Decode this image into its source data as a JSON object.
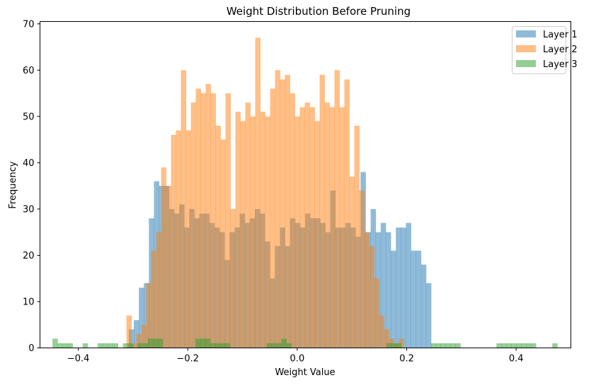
{
  "chart_data": {
    "type": "histogram",
    "title": "Weight Distribution Before Pruning",
    "xlabel": "Weight Value",
    "ylabel": "Frequency",
    "xlim": [
      -0.47,
      0.5
    ],
    "ylim": [
      0,
      70.5
    ],
    "x_ticks": [
      -0.4,
      -0.2,
      0.0,
      0.2,
      0.4
    ],
    "x_tick_labels": [
      "−0.4",
      "−0.2",
      "0.0",
      "0.2",
      "0.4"
    ],
    "y_ticks": [
      0,
      10,
      20,
      30,
      40,
      50,
      60,
      70
    ],
    "y_tick_labels": [
      "0",
      "10",
      "20",
      "30",
      "40",
      "50",
      "60",
      "70"
    ],
    "grid": false,
    "legend_position": "top-right",
    "alpha": 0.5,
    "series": [
      {
        "name": "Layer 1",
        "color": "#1f77b4",
        "bin_start": -0.3078,
        "bin_width": 0.009207,
        "values": [
          4,
          6,
          13,
          14,
          28,
          36,
          35,
          35,
          30,
          29,
          31,
          26,
          30,
          28,
          29,
          29,
          27,
          26,
          25,
          19,
          25,
          26,
          29,
          27,
          28,
          30,
          29,
          23,
          15,
          22,
          26,
          22,
          28,
          27,
          26,
          29,
          28,
          28,
          27,
          25,
          34,
          26,
          26,
          27,
          26,
          24,
          38,
          25,
          30,
          25,
          27,
          25,
          21,
          26,
          26,
          27,
          21,
          21,
          18,
          14
        ]
      },
      {
        "name": "Layer 2",
        "color": "#ff7f0e",
        "bin_start": -0.312,
        "bin_width": 0.00905,
        "values": [
          7,
          1,
          3,
          5,
          14,
          21,
          25,
          39,
          35,
          46,
          47,
          60,
          47,
          53,
          56,
          55,
          57,
          55,
          48,
          45,
          55,
          30,
          51,
          49,
          53,
          50,
          67,
          51,
          50,
          56,
          60,
          58,
          59,
          55,
          50,
          52,
          53,
          52,
          49,
          59,
          53,
          52,
          60,
          52,
          58,
          37,
          48,
          34,
          25,
          22,
          15,
          7,
          4,
          2,
          1,
          2
        ]
      },
      {
        "name": "Layer 3",
        "color": "#2ca02c",
        "bin_start": -0.4472,
        "bin_width": 0.009207,
        "values": [
          2,
          1,
          1,
          1,
          0,
          0,
          1,
          0,
          0,
          1,
          1,
          1,
          1,
          0,
          1,
          2,
          2,
          2,
          1,
          0,
          1,
          0,
          0,
          1,
          1,
          2,
          2,
          2,
          1,
          1,
          1,
          0,
          0,
          0,
          0,
          0,
          0,
          0,
          0,
          0,
          0,
          0,
          0,
          0,
          0,
          0,
          0,
          0,
          0,
          0,
          0,
          0,
          0,
          0,
          0,
          0,
          0,
          0,
          0,
          0,
          0,
          0,
          1,
          1,
          1,
          1,
          0,
          0,
          0,
          0,
          1,
          1,
          2,
          1,
          1,
          1,
          1,
          0,
          0,
          0,
          0,
          1,
          1,
          1,
          1,
          1,
          1,
          1,
          1,
          0,
          1
        ],
        "sparse_bins": [
          [
            -0.4472,
            2
          ],
          [
            -0.438,
            1
          ],
          [
            -0.4288,
            1
          ],
          [
            -0.4196,
            1
          ],
          [
            -0.392,
            1
          ],
          [
            -0.3644,
            1
          ],
          [
            -0.3552,
            1
          ],
          [
            -0.346,
            1
          ],
          [
            -0.3368,
            1
          ],
          [
            -0.3184,
            1
          ],
          [
            -0.3092,
            1
          ],
          [
            -0.292,
            1
          ],
          [
            -0.282,
            1
          ],
          [
            -0.273,
            2
          ],
          [
            -0.264,
            2
          ],
          [
            -0.255,
            2
          ],
          [
            -0.186,
            2
          ],
          [
            -0.177,
            2
          ],
          [
            -0.168,
            2
          ],
          [
            -0.159,
            1
          ],
          [
            -0.15,
            1
          ],
          [
            -0.141,
            1
          ],
          [
            -0.132,
            1
          ],
          [
            -0.056,
            1
          ],
          [
            -0.047,
            1
          ],
          [
            -0.038,
            1
          ],
          [
            -0.029,
            2
          ],
          [
            -0.02,
            1
          ],
          [
            0.163,
            1
          ],
          [
            0.172,
            1
          ],
          [
            0.181,
            1
          ],
          [
            0.244,
            1
          ],
          [
            0.253,
            1
          ],
          [
            0.262,
            1
          ],
          [
            0.271,
            1
          ],
          [
            0.28,
            1
          ],
          [
            0.289,
            1
          ],
          [
            0.364,
            1
          ],
          [
            0.373,
            1
          ],
          [
            0.382,
            1
          ],
          [
            0.391,
            1
          ],
          [
            0.4,
            1
          ],
          [
            0.409,
            1
          ],
          [
            0.418,
            1
          ],
          [
            0.427,
            1
          ],
          [
            0.466,
            1
          ]
        ]
      }
    ]
  }
}
